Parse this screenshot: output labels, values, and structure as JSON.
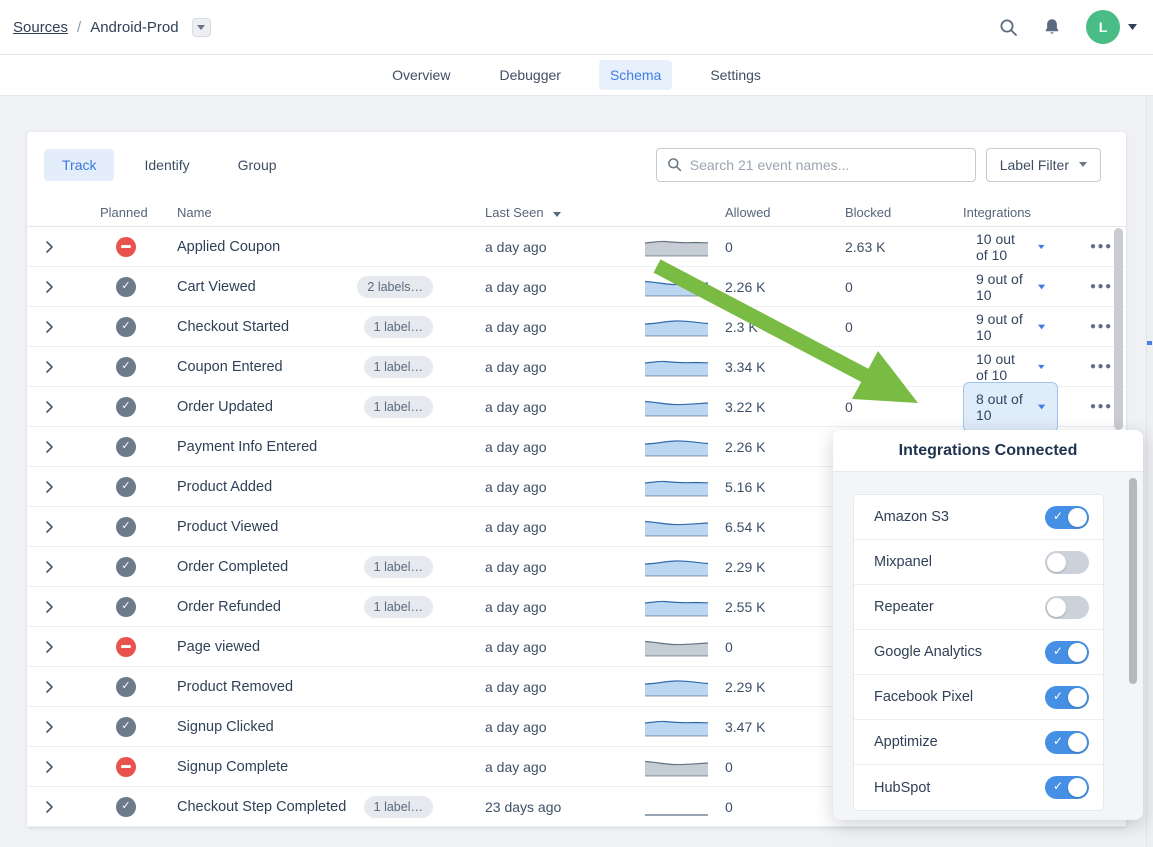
{
  "header": {
    "breadcrumb": {
      "root": "Sources",
      "separator": "/",
      "current": "Android-Prod"
    },
    "avatar_initial": "L",
    "icons": {
      "search": "magnifier",
      "notifications": "bell",
      "account": "avatar-with-caret",
      "breadcrumb_menu": "caret-down"
    }
  },
  "nav_tabs": [
    {
      "label": "Overview",
      "active": false
    },
    {
      "label": "Debugger",
      "active": false
    },
    {
      "label": "Schema",
      "active": true
    },
    {
      "label": "Settings",
      "active": false
    }
  ],
  "toolbar": {
    "type_tabs": [
      {
        "label": "Track",
        "active": true
      },
      {
        "label": "Identify",
        "active": false
      },
      {
        "label": "Group",
        "active": false
      }
    ],
    "search_placeholder": "Search 21 event names...",
    "label_filter_label": "Label Filter"
  },
  "table": {
    "headers": {
      "planned": "Planned",
      "name": "Name",
      "last_seen": "Last Seen",
      "allowed": "Allowed",
      "blocked": "Blocked",
      "integrations": "Integrations"
    },
    "rows": [
      {
        "planned": false,
        "name": "Applied Coupon",
        "label": null,
        "last_seen": "a day ago",
        "spark": "gray",
        "allowed": "0",
        "blocked": "2.63 K",
        "integrations": "10 out of 10",
        "selected": false
      },
      {
        "planned": true,
        "name": "Cart Viewed",
        "label": "2 labels…",
        "last_seen": "a day ago",
        "spark": "blue",
        "allowed": "2.26 K",
        "blocked": "0",
        "integrations": "9 out of 10",
        "selected": false
      },
      {
        "planned": true,
        "name": "Checkout Started",
        "label": "1 label…",
        "last_seen": "a day ago",
        "spark": "blue",
        "allowed": "2.3 K",
        "blocked": "0",
        "integrations": "9 out of 10",
        "selected": false
      },
      {
        "planned": true,
        "name": "Coupon Entered",
        "label": "1 label…",
        "last_seen": "a day ago",
        "spark": "blue",
        "allowed": "3.34 K",
        "blocked": "0",
        "integrations": "10 out of 10",
        "selected": false
      },
      {
        "planned": true,
        "name": "Order Updated",
        "label": "1 label…",
        "last_seen": "a day ago",
        "spark": "blue",
        "allowed": "3.22 K",
        "blocked": "0",
        "integrations": "8 out of 10",
        "selected": true
      },
      {
        "planned": true,
        "name": "Payment Info Entered",
        "label": null,
        "last_seen": "a day ago",
        "spark": "blue",
        "allowed": "2.26 K",
        "blocked": null,
        "integrations": null,
        "selected": false
      },
      {
        "planned": true,
        "name": "Product Added",
        "label": null,
        "last_seen": "a day ago",
        "spark": "blue",
        "allowed": "5.16 K",
        "blocked": null,
        "integrations": null,
        "selected": false
      },
      {
        "planned": true,
        "name": "Product Viewed",
        "label": null,
        "last_seen": "a day ago",
        "spark": "blue",
        "allowed": "6.54 K",
        "blocked": null,
        "integrations": null,
        "selected": false
      },
      {
        "planned": true,
        "name": "Order Completed",
        "label": "1 label…",
        "last_seen": "a day ago",
        "spark": "blue",
        "allowed": "2.29 K",
        "blocked": null,
        "integrations": null,
        "selected": false
      },
      {
        "planned": true,
        "name": "Order Refunded",
        "label": "1 label…",
        "last_seen": "a day ago",
        "spark": "blue",
        "allowed": "2.55 K",
        "blocked": null,
        "integrations": null,
        "selected": false
      },
      {
        "planned": false,
        "name": "Page viewed",
        "label": null,
        "last_seen": "a day ago",
        "spark": "gray",
        "allowed": "0",
        "blocked": null,
        "integrations": null,
        "selected": false
      },
      {
        "planned": true,
        "name": "Product Removed",
        "label": null,
        "last_seen": "a day ago",
        "spark": "blue",
        "allowed": "2.29 K",
        "blocked": null,
        "integrations": null,
        "selected": false
      },
      {
        "planned": true,
        "name": "Signup Clicked",
        "label": null,
        "last_seen": "a day ago",
        "spark": "blue",
        "allowed": "3.47 K",
        "blocked": null,
        "integrations": null,
        "selected": false
      },
      {
        "planned": false,
        "name": "Signup Complete",
        "label": null,
        "last_seen": "a day ago",
        "spark": "gray",
        "allowed": "0",
        "blocked": null,
        "integrations": null,
        "selected": false
      },
      {
        "planned": true,
        "name": "Checkout Step Completed",
        "label": "1 label…",
        "last_seen": "23 days ago",
        "spark": "flat",
        "allowed": "0",
        "blocked": null,
        "integrations": null,
        "selected": false
      }
    ]
  },
  "popover": {
    "title": "Integrations Connected",
    "items": [
      {
        "name": "Amazon S3",
        "enabled": true
      },
      {
        "name": "Mixpanel",
        "enabled": false
      },
      {
        "name": "Repeater",
        "enabled": false
      },
      {
        "name": "Google Analytics",
        "enabled": true
      },
      {
        "name": "Facebook Pixel",
        "enabled": true
      },
      {
        "name": "Apptimize",
        "enabled": true
      },
      {
        "name": "HubSpot",
        "enabled": true
      }
    ]
  },
  "annotation": {
    "shape": "arrow",
    "color": "#79BB43"
  },
  "colors": {
    "accent_blue": "#3D7DE4",
    "active_tab_bg": "#E8F0FC",
    "avatar_green": "#49BD85",
    "arrow_green": "#79BB43",
    "planned_gray": "#6C7A89",
    "unplanned_red": "#E8534E",
    "toggle_on": "#4590E4",
    "toggle_off": "#CBD2DA",
    "selected_btn_bg": "#DFECFA",
    "selected_btn_border": "#A0C6EE",
    "spark_blue_fill": "#BBD6F0",
    "spark_gray_fill": "#C7CDD4"
  }
}
